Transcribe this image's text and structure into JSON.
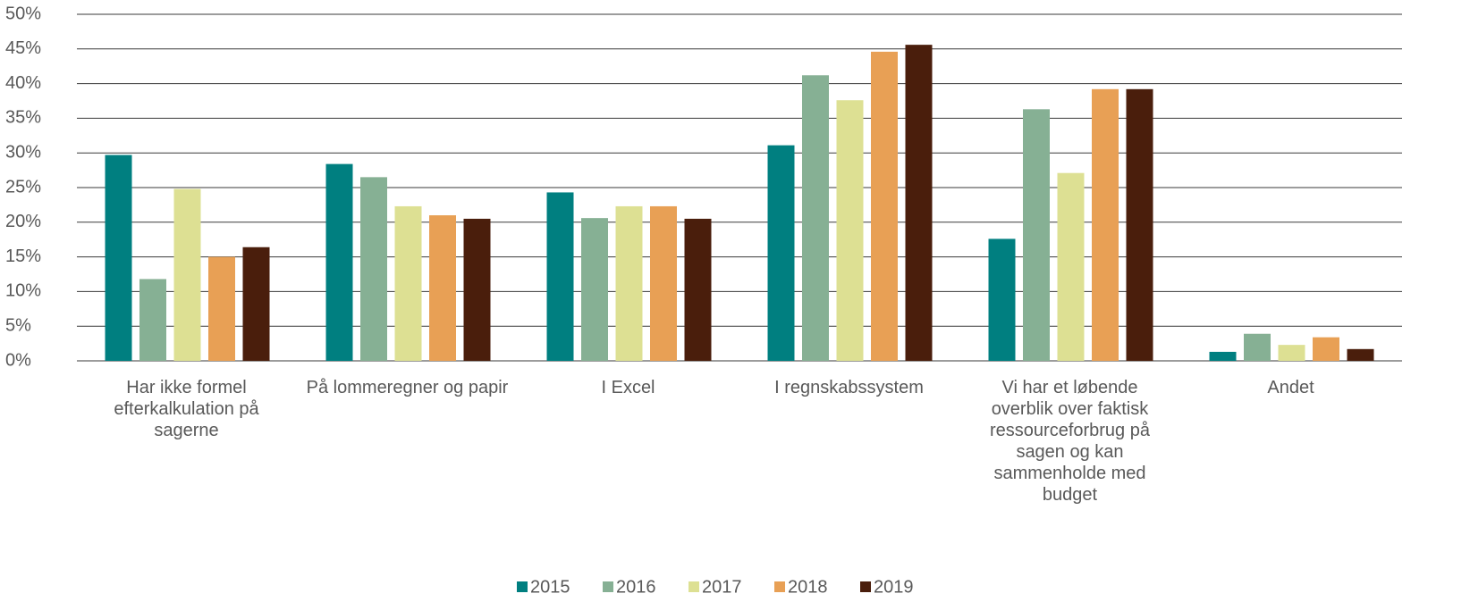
{
  "chart_data": {
    "type": "bar",
    "categories": [
      "Har ikke formel efterkalkulation på sagerne",
      "På lommeregner og papir",
      "I Excel",
      "I regnskabssystem",
      "Vi har et løbende overblik over faktisk ressourceforbrug på sagen og kan sammenholde med budget",
      "Andet"
    ],
    "series": [
      {
        "name": "2015",
        "color": "#007f80",
        "values": [
          29.7,
          28.4,
          24.3,
          31.1,
          17.6,
          1.3
        ]
      },
      {
        "name": "2016",
        "color": "#86b094",
        "values": [
          11.8,
          26.5,
          20.6,
          41.2,
          36.3,
          3.9
        ]
      },
      {
        "name": "2017",
        "color": "#dde093",
        "values": [
          24.8,
          22.3,
          22.3,
          37.6,
          27.1,
          2.3
        ]
      },
      {
        "name": "2018",
        "color": "#e8a055",
        "values": [
          15.0,
          21.0,
          22.3,
          44.6,
          39.2,
          3.4
        ]
      },
      {
        "name": "2019",
        "color": "#4a1e0c",
        "values": [
          16.4,
          20.5,
          20.5,
          45.6,
          39.2,
          1.7
        ]
      }
    ],
    "ylim": [
      0,
      50
    ],
    "yticks": [
      {
        "value": 0,
        "label": "0%"
      },
      {
        "value": 5,
        "label": "5%"
      },
      {
        "value": 10,
        "label": "10%"
      },
      {
        "value": 15,
        "label": "15%"
      },
      {
        "value": 20,
        "label": "20%"
      },
      {
        "value": 25,
        "label": "25%"
      },
      {
        "value": 30,
        "label": "30%"
      },
      {
        "value": 35,
        "label": "35%"
      },
      {
        "value": 40,
        "label": "40%"
      },
      {
        "value": 45,
        "label": "45%"
      },
      {
        "value": 50,
        "label": "50%"
      }
    ],
    "grid": true,
    "legend": "bottom"
  }
}
